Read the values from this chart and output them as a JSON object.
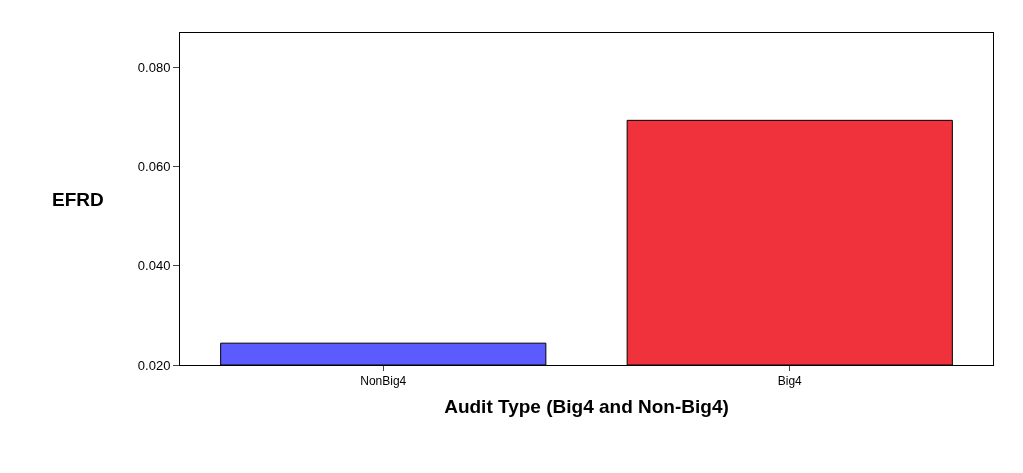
{
  "chart_data": {
    "type": "bar",
    "categories": [
      "NonBig4",
      "Big4"
    ],
    "values": [
      0.0244,
      0.0693
    ],
    "colors": [
      "#5b5bff",
      "#f0323c"
    ],
    "xlabel": "Audit Type (Big4 and Non-Big4)",
    "ylabel": "EFRD",
    "ylim": [
      0.02,
      0.0869
    ],
    "yticks": [
      {
        "value": 0.02,
        "label": "0.020"
      },
      {
        "value": 0.04,
        "label": "0.040"
      },
      {
        "value": 0.06,
        "label": "0.060"
      },
      {
        "value": 0.08,
        "label": "0.080"
      }
    ],
    "legend": false
  }
}
